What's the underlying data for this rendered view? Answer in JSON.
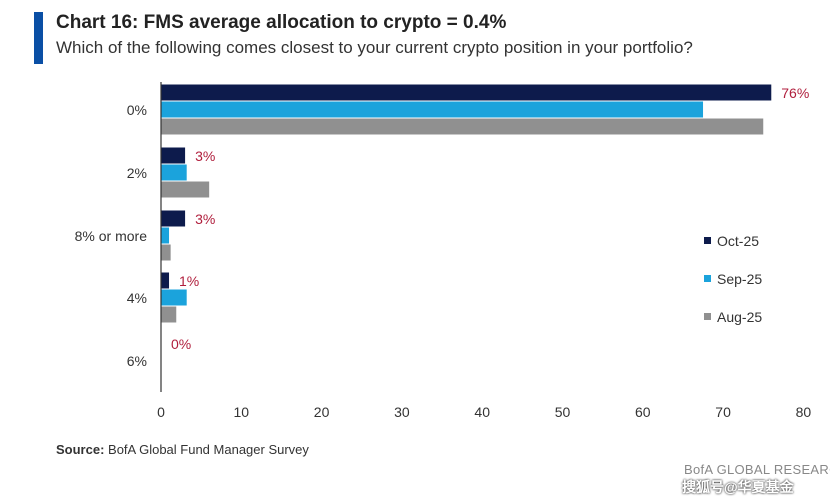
{
  "header": {
    "title": "Chart 16: FMS average allocation to crypto = 0.4%",
    "subtitle": "Which of the following comes closest to your current crypto position in your portfolio?"
  },
  "footer": {
    "source_label": "Source:",
    "source_text": " BofA Global Fund Manager Survey",
    "brand": "BofA GLOBAL RESEARCH",
    "watermark": "搜狐号@华夏基金"
  },
  "colors": {
    "oct": "#0d1b4c",
    "sep": "#1ba3dc",
    "aug": "#909090",
    "label": "#b01e3c",
    "axis": "#333333",
    "accent": "#0a4fa5"
  },
  "chart_data": {
    "type": "bar",
    "orientation": "horizontal",
    "categories": [
      "0%",
      "2%",
      "8% or more",
      "4%",
      "6%"
    ],
    "series": [
      {
        "name": "Oct-25",
        "values": [
          76,
          3,
          3,
          1,
          0
        ]
      },
      {
        "name": "Sep-25",
        "values": [
          67.5,
          3.2,
          1.0,
          3.2,
          0
        ]
      },
      {
        "name": "Aug-25",
        "values": [
          75,
          6,
          1.2,
          1.9,
          0
        ]
      }
    ],
    "data_labels": [
      "76%",
      "3%",
      "3%",
      "1%",
      "0%"
    ],
    "xlim": [
      0,
      80
    ],
    "xticks": [
      "0",
      "10",
      "20",
      "30",
      "40",
      "50",
      "60",
      "70",
      "80"
    ],
    "legend_position": "right",
    "grid": false
  }
}
